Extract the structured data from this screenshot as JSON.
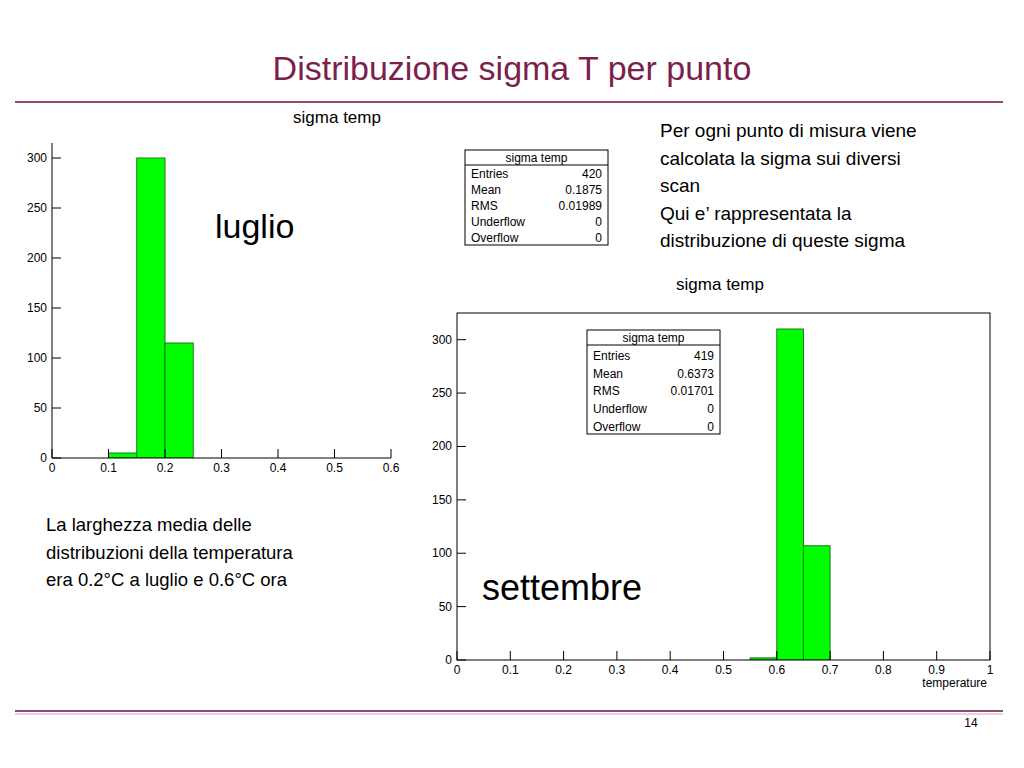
{
  "slide": {
    "title": "Distribuzione sigma T per punto",
    "description": [
      "Per ogni punto di misura viene",
      "calcolata la sigma sui diversi",
      "scan",
      "Qui e’ rappresentata la",
      "distribuzione di queste sigma"
    ],
    "note": [
      "La larghezza media delle",
      "distribuzioni della temperatura",
      "era 0.2°C a luglio e 0.6°C ora"
    ],
    "page_number": "14"
  },
  "chart_data": [
    {
      "type": "histogram",
      "title": "sigma temp",
      "annotation": "luglio",
      "bins": [
        0.1,
        0.15,
        0.2,
        0.25
      ],
      "values": [
        5,
        300,
        115
      ],
      "color": "#00ff00",
      "xlim": [
        0,
        0.6
      ],
      "xticks": [
        0,
        0.1,
        0.2,
        0.3,
        0.4,
        0.5,
        0.6
      ],
      "ylim": [
        0,
        315
      ],
      "yticks": [
        0,
        50,
        100,
        150,
        200,
        250,
        300
      ],
      "stats": {
        "title": "sigma temp",
        "rows": [
          {
            "label": "Entries",
            "value": 420
          },
          {
            "label": "Mean",
            "value": 0.1875
          },
          {
            "label": "RMS",
            "value": 0.01989
          },
          {
            "label": "Underflow",
            "value": 0
          },
          {
            "label": "Overflow",
            "value": 0
          }
        ]
      }
    },
    {
      "type": "histogram",
      "title": "sigma temp",
      "annotation": "settembre",
      "x_label": "temperature",
      "bins": [
        0.55,
        0.6,
        0.65,
        0.7
      ],
      "values": [
        2,
        310,
        107
      ],
      "color": "#00ff00",
      "xlim": [
        0,
        1
      ],
      "xticks": [
        0,
        0.1,
        0.2,
        0.3,
        0.4,
        0.5,
        0.6,
        0.7,
        0.8,
        0.9,
        1
      ],
      "ylim": [
        0,
        325
      ],
      "yticks": [
        0,
        50,
        100,
        150,
        200,
        250,
        300
      ],
      "stats": {
        "title": "sigma temp",
        "rows": [
          {
            "label": "Entries",
            "value": 419
          },
          {
            "label": "Mean",
            "value": 0.6373
          },
          {
            "label": "RMS",
            "value": 0.01701
          },
          {
            "label": "Underflow",
            "value": 0
          },
          {
            "label": "Overflow",
            "value": 0
          }
        ]
      }
    }
  ]
}
